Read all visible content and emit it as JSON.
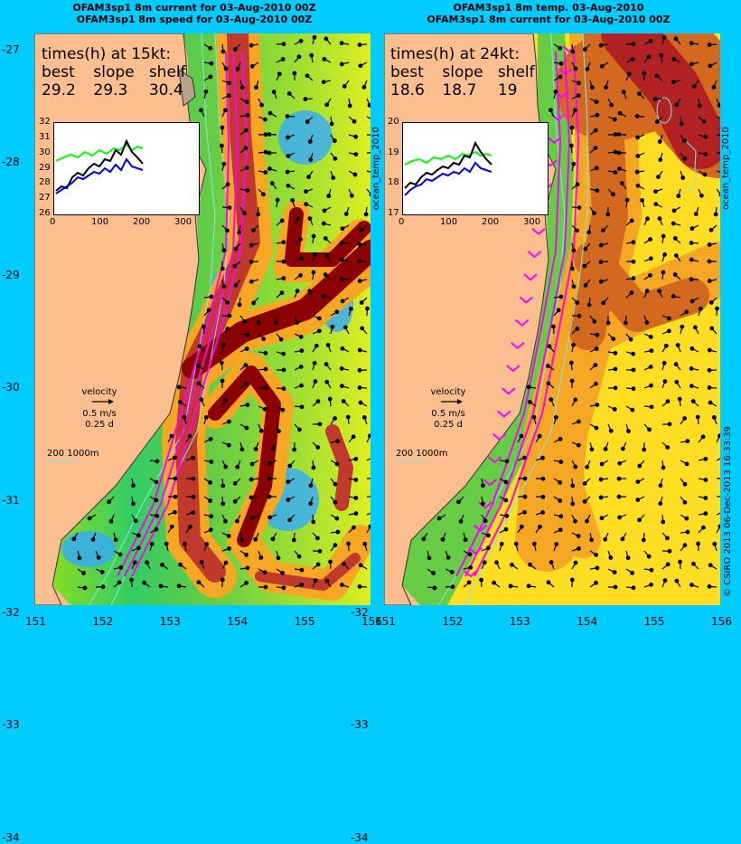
{
  "left_panel": {
    "title_line1": "OFAM3sp1 8m current for 03-Aug-2010 00Z",
    "title_line2": "OFAM3sp1 8m speed for 03-Aug-2010 00Z",
    "times_header": "times(h) at 15kt:",
    "col_labels": [
      "best",
      "slope",
      "shelf"
    ],
    "col_values": [
      "29.2",
      "29.3",
      "30.4"
    ],
    "inset_yticks": [
      "32",
      "31",
      "30",
      "29",
      "28",
      "27",
      "26"
    ],
    "inset_xticks": [
      "0",
      "100",
      "200",
      "300"
    ],
    "velocity_label": "velocity",
    "velocity_speed": "0.5 m/s",
    "velocity_time": "0.25 d",
    "depth_scale": "200  1000m",
    "side_label": "ocean_temp_2010"
  },
  "right_panel": {
    "title_line1": "OFAM3sp1 8m temp. 03-Aug-2010",
    "title_line2": "OFAM3sp1 8m current for 03-Aug-2010 00Z",
    "times_header": "times(h) at 24kt:",
    "col_labels": [
      "best",
      "slope",
      "shelf"
    ],
    "col_values": [
      "18.6",
      "18.7",
      "19"
    ],
    "inset_yticks": [
      "20",
      "19",
      "18",
      "17"
    ],
    "inset_xticks": [
      "0",
      "100",
      "200",
      "300"
    ],
    "velocity_label": "velocity",
    "velocity_speed": "0.5 m/s",
    "velocity_time": "0.25 d",
    "depth_scale": "200  1000m",
    "side_label": "ocean_temp_2010",
    "credit": "© CSIRO 2013   06-Dec-2013 16:33:39"
  },
  "axes": {
    "lat_ticks": [
      "-27",
      "-28",
      "-29",
      "-30",
      "-31",
      "-32",
      "-33",
      "-34"
    ],
    "lon_ticks": [
      "151",
      "152",
      "153",
      "154",
      "155",
      "156"
    ]
  },
  "colors": {
    "background": "#00ccff",
    "land": "#fbbf8f",
    "route": "#ff00ff",
    "series_green": "#00ff00",
    "series_black": "#000000",
    "series_blue": "#0000ff",
    "speed_high": "#8b0000",
    "speed_mid": "#f5a623",
    "speed_low": "#33aaff"
  }
}
